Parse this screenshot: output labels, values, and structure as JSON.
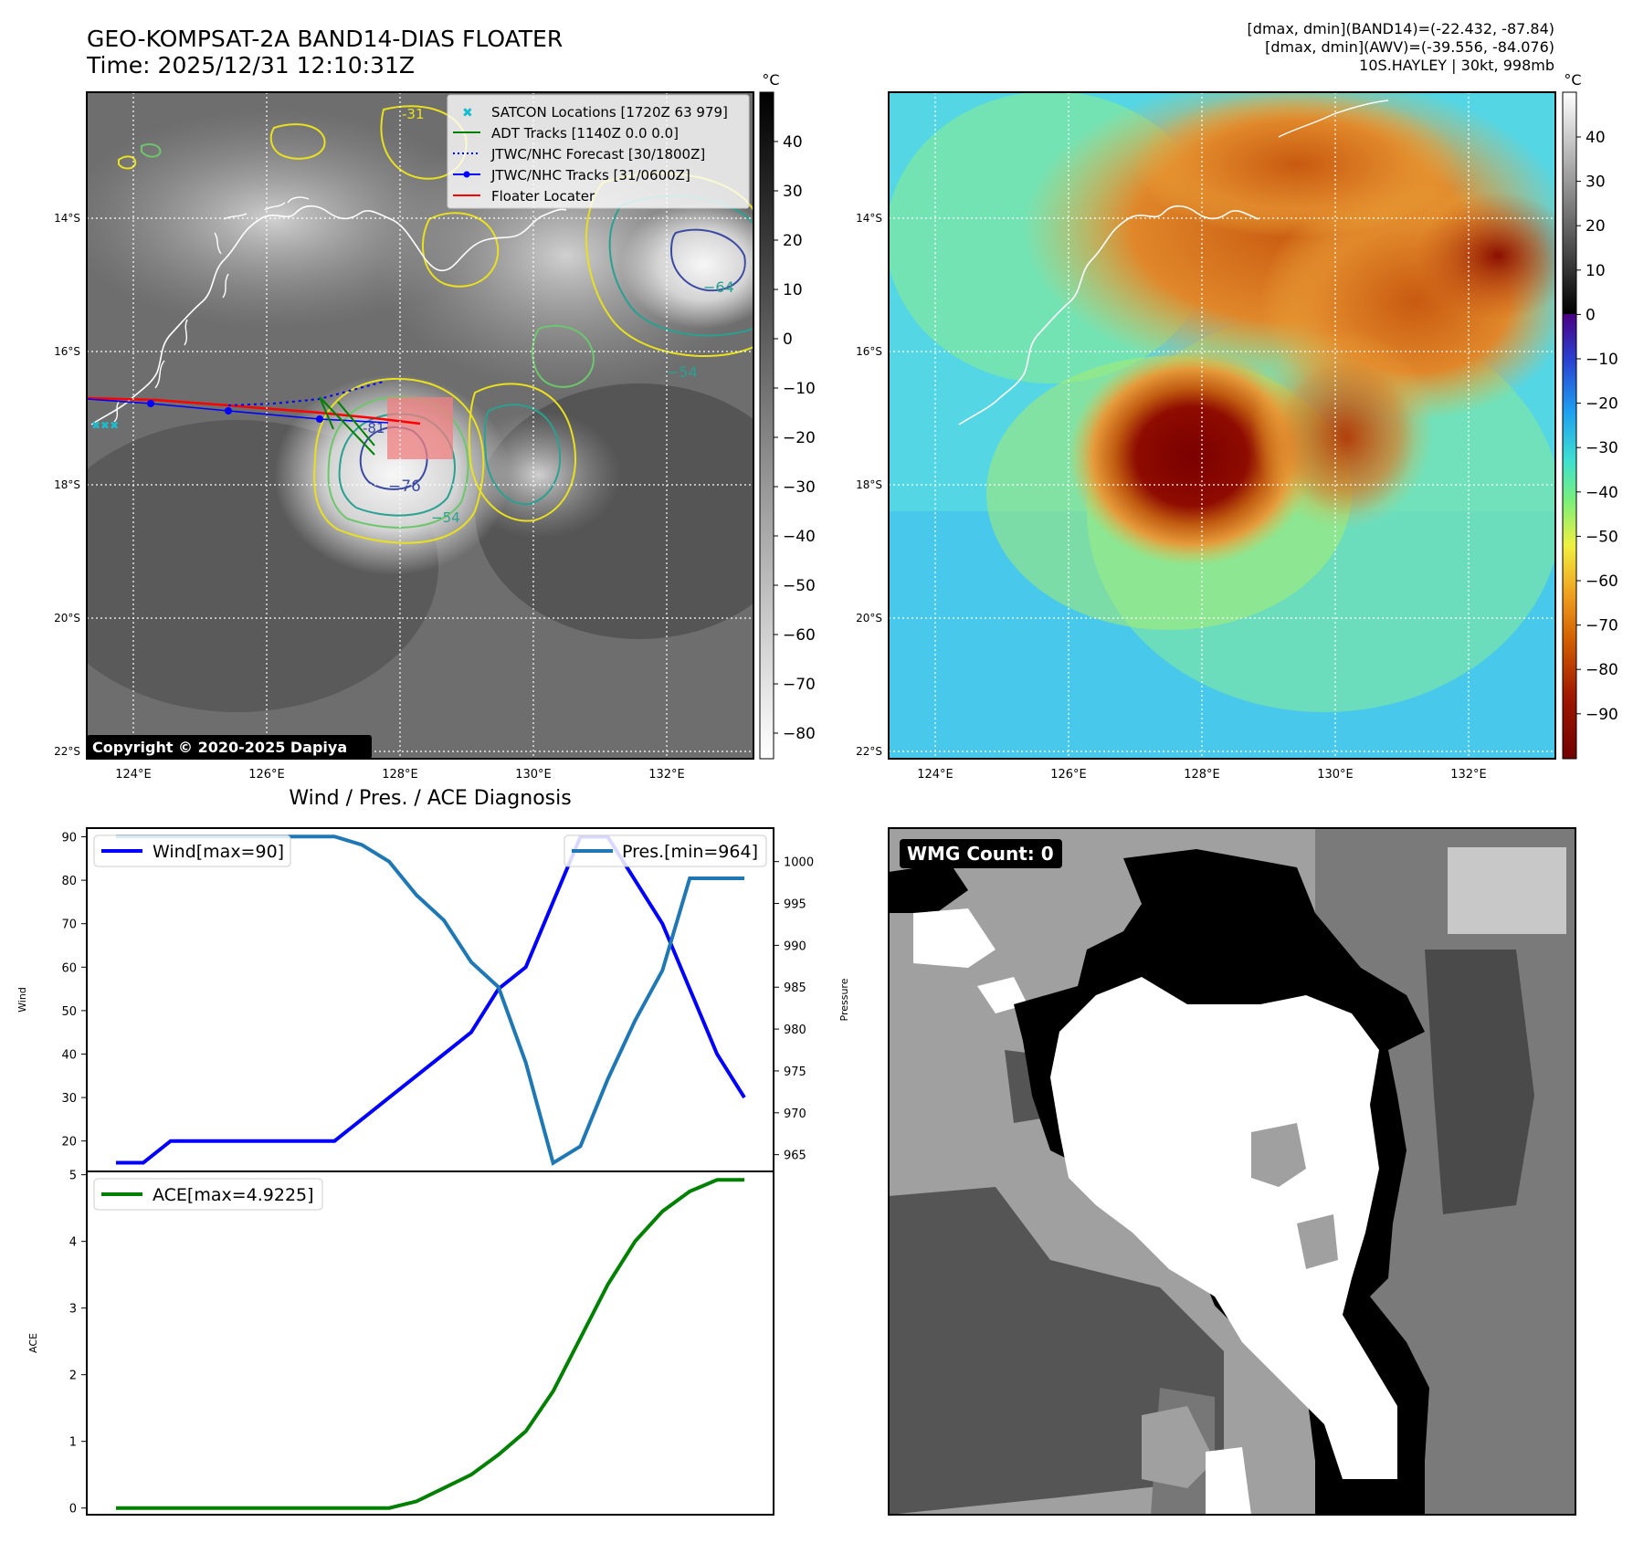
{
  "header": {
    "title_line1": "GEO-KOMPSAT-2A BAND14-DIAS FLOATER",
    "title_line2": "Time: 2025/12/31 12:10:31Z",
    "info_line1": "[dmax, dmin](BAND14)=(-22.432, -87.84)",
    "info_line2": "[dmax, dmin](AWV)=(-39.556, -84.076)",
    "info_line3": "10S.HAYLEY | 30kt, 998mb"
  },
  "map": {
    "lat_labels": [
      "14°S",
      "16°S",
      "18°S",
      "20°S",
      "22°S"
    ],
    "lon_labels": [
      "124°E",
      "126°E",
      "128°E",
      "130°E",
      "132°E"
    ],
    "copyright": "Copyright © 2020-2025 Dapiya",
    "colorbar_unit": "°C",
    "bw_colorbar_ticks": [
      "40",
      "30",
      "20",
      "10",
      "0",
      "−10",
      "−20",
      "−30",
      "−40",
      "−50",
      "−60",
      "−70",
      "−80"
    ],
    "color_colorbar_ticks": [
      "40",
      "30",
      "20",
      "10",
      "0",
      "−10",
      "−20",
      "−30",
      "−40",
      "−50",
      "−60",
      "−70",
      "−80",
      "−90"
    ],
    "contour_labels": [
      "-31",
      "−64",
      "−54",
      "−76",
      "−54",
      "-81"
    ],
    "legend": [
      {
        "label": "SATCON Locations [1720Z 63 979]",
        "color": "#17becf"
      },
      {
        "label": "ADT Tracks [1140Z 0.0 0.0]",
        "color": "#008000"
      },
      {
        "label": "JTWC/NHC Forecast [30/1800Z]",
        "color": "#0000ff"
      },
      {
        "label": "JTWC/NHC Tracks [31/0600Z]",
        "color": "#0000ff"
      },
      {
        "label": "Floater Locater",
        "color": "#ff0000"
      }
    ]
  },
  "wmg": {
    "label": "WMG Count: 0"
  },
  "diagnosis": {
    "title": "Wind / Pres. / ACE Diagnosis",
    "wind_legend": "Wind[max=90]",
    "pres_legend": "Pres.[min=964]",
    "ace_legend": "ACE[max=4.9225]",
    "wind_ylabel": "Wind",
    "pres_ylabel": "Pressure",
    "ace_ylabel": "ACE"
  },
  "chart_data": [
    {
      "type": "line",
      "title": "Wind / Pres. / ACE Diagnosis",
      "ylabel": "Wind",
      "ylim": [
        13,
        92
      ],
      "yticks": [
        20,
        30,
        40,
        50,
        60,
        70,
        80,
        90
      ],
      "x": [
        0,
        1,
        2,
        3,
        4,
        5,
        6,
        7,
        8,
        9,
        10,
        11,
        12,
        13,
        14,
        15,
        16,
        17,
        18,
        19,
        20,
        21,
        22,
        23
      ],
      "series": [
        {
          "name": "Wind[max=90]",
          "color": "#0000ff",
          "values": [
            15,
            15,
            20,
            20,
            20,
            20,
            20,
            20,
            20,
            25,
            30,
            35,
            40,
            45,
            55,
            60,
            75,
            90,
            90,
            80,
            70,
            55,
            40,
            30
          ]
        }
      ]
    },
    {
      "type": "line",
      "ylabel": "Pressure",
      "ylim": [
        963,
        1004
      ],
      "yticks": [
        965,
        970,
        975,
        980,
        985,
        990,
        995,
        1000
      ],
      "x": [
        0,
        1,
        2,
        3,
        4,
        5,
        6,
        7,
        8,
        9,
        10,
        11,
        12,
        13,
        14,
        15,
        16,
        17,
        18,
        19,
        20,
        21,
        22,
        23
      ],
      "series": [
        {
          "name": "Pres.[min=964]",
          "color": "#1f77b4",
          "values": [
            1003,
            1003,
            1003,
            1003,
            1003,
            1003,
            1003,
            1003,
            1003,
            1002,
            1000,
            996,
            993,
            988,
            985,
            976,
            964,
            966,
            974,
            981,
            987,
            998,
            998,
            998
          ]
        }
      ]
    },
    {
      "type": "line",
      "ylabel": "ACE",
      "ylim": [
        -0.1,
        5.05
      ],
      "yticks": [
        0,
        1,
        2,
        3,
        4,
        5
      ],
      "x": [
        0,
        1,
        2,
        3,
        4,
        5,
        6,
        7,
        8,
        9,
        10,
        11,
        12,
        13,
        14,
        15,
        16,
        17,
        18,
        19,
        20,
        21,
        22,
        23
      ],
      "series": [
        {
          "name": "ACE[max=4.9225]",
          "color": "#008000",
          "values": [
            0,
            0,
            0,
            0,
            0,
            0,
            0,
            0,
            0,
            0,
            0,
            0.1,
            0.3,
            0.5,
            0.8,
            1.15,
            1.75,
            2.55,
            3.35,
            4.0,
            4.45,
            4.75,
            4.9225,
            4.9225
          ]
        }
      ]
    }
  ]
}
